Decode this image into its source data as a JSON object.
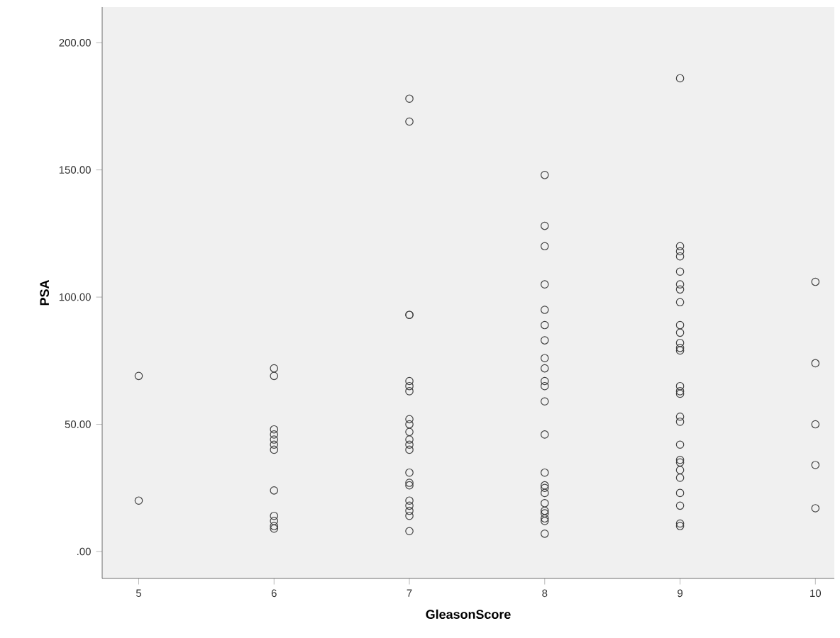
{
  "chart_data": {
    "type": "scatter",
    "xlabel": "GleasonScore",
    "ylabel": "PSA",
    "color": "#404040",
    "marker": "circle",
    "grid": false,
    "x": [
      5,
      5,
      6,
      6,
      6,
      6,
      6,
      6,
      6,
      6,
      6,
      6,
      6,
      6,
      7,
      7,
      7,
      7,
      7,
      7,
      7,
      7,
      7,
      7,
      7,
      7,
      7,
      7,
      7,
      7,
      7,
      7,
      7,
      7,
      7,
      8,
      8,
      8,
      8,
      8,
      8,
      8,
      8,
      8,
      8,
      8,
      8,
      8,
      8,
      8,
      8,
      8,
      8,
      8,
      8,
      8,
      8,
      8,
      9,
      9,
      9,
      9,
      9,
      9,
      9,
      9,
      9,
      9,
      9,
      9,
      9,
      9,
      9,
      9,
      9,
      9,
      9,
      9,
      9,
      9,
      9,
      9,
      9,
      9,
      9,
      10,
      10,
      10,
      10,
      10
    ],
    "values": [
      69,
      20,
      72,
      69,
      48,
      46,
      44,
      42,
      40,
      24,
      14,
      12,
      10,
      9,
      178,
      169,
      93,
      93,
      67,
      65,
      63,
      52,
      50,
      47,
      44,
      42,
      40,
      31,
      27,
      26,
      20,
      18,
      16,
      14,
      8,
      148,
      128,
      120,
      105,
      95,
      89,
      83,
      76,
      72,
      67,
      65,
      59,
      46,
      31,
      26,
      25,
      23,
      19,
      16,
      15,
      13,
      12,
      7,
      186,
      120,
      118,
      116,
      110,
      105,
      103,
      98,
      89,
      86,
      82,
      80,
      79,
      65,
      63,
      62,
      53,
      51,
      42,
      36,
      35,
      32,
      29,
      23,
      18,
      11,
      10,
      106,
      74,
      50,
      34,
      17
    ],
    "xlim": [
      4.73,
      10.14
    ],
    "ylim": [
      -10.6,
      214
    ],
    "xticks": [
      5,
      6,
      7,
      8,
      9,
      10
    ],
    "yticks": [
      {
        "value": 0,
        "label": ".00"
      },
      {
        "value": 50,
        "label": "50.00"
      },
      {
        "value": 100,
        "label": "100.00"
      },
      {
        "value": 150,
        "label": "150.00"
      },
      {
        "value": 200,
        "label": "200.00"
      }
    ]
  }
}
